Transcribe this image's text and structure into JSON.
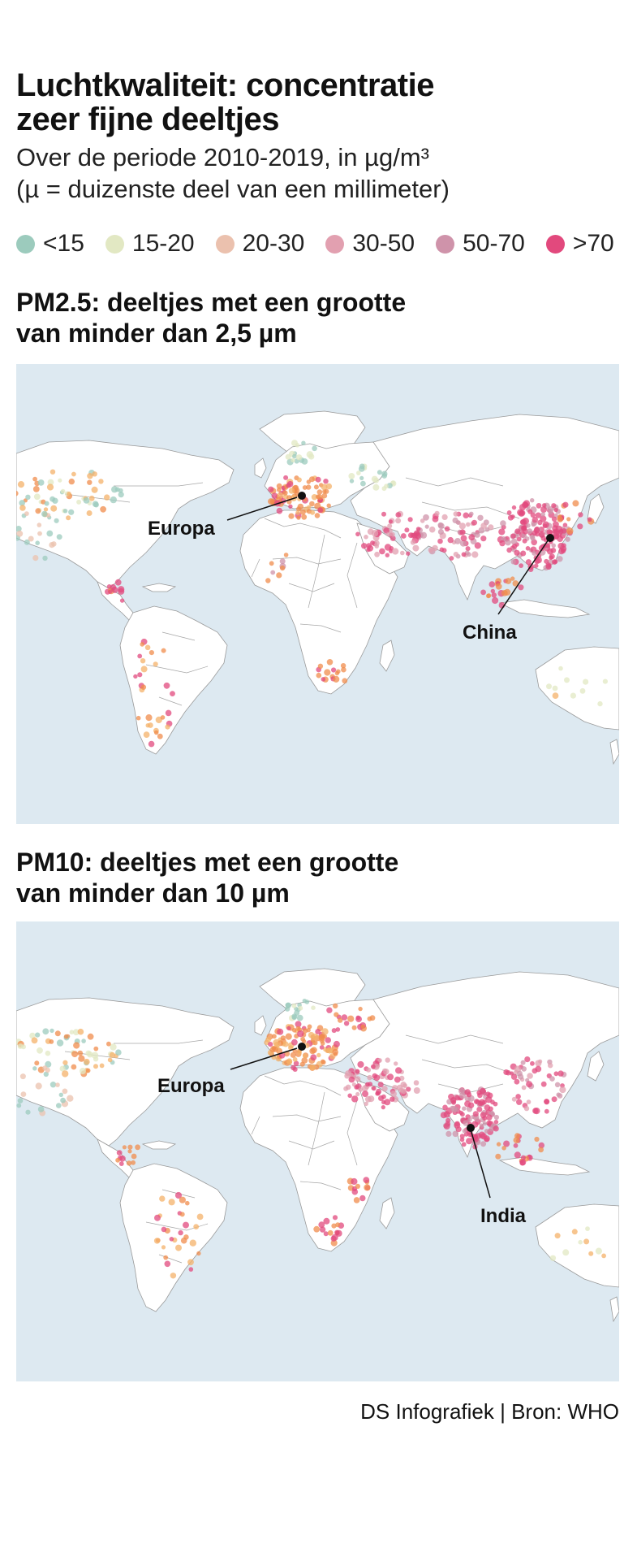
{
  "header": {
    "title_line1": "Luchtkwaliteit: concentratie",
    "title_line2": "zeer fijne deeltjes",
    "subtitle_line1": "Over de periode 2010-2019, in µg/m³",
    "subtitle_line2": "(µ = duizenste deel van een millimeter)"
  },
  "legend": [
    {
      "label": "<15",
      "color": "#9ccbbd"
    },
    {
      "label": "15-20",
      "color": "#e2e8c3"
    },
    {
      "label": "20-30",
      "color": "#ebc1ae"
    },
    {
      "label": "30-50",
      "color": "#e2a0b0"
    },
    {
      "label": "50-70",
      "color": "#cf93aa"
    },
    {
      "label": ">70",
      "color": "#e2497d"
    }
  ],
  "maps": [
    {
      "title_line1": "PM2.5: deeltjes met een grootte",
      "title_line2": "van minder dan 2,5 µm",
      "callouts": [
        "Europa",
        "China"
      ]
    },
    {
      "title_line1": "PM10: deeltjes met een grootte",
      "title_line2": "van minder dan 10 µm",
      "callouts": [
        "Europa",
        "India"
      ]
    }
  ],
  "colors": {
    "ocean": "#dde9f1",
    "land": "#ffffff",
    "border": "#8a8a8a",
    "orange": "#f08c4c",
    "yellow_orange": "#f4b26a"
  },
  "source": "DS Infografiek | Bron: WHO"
}
